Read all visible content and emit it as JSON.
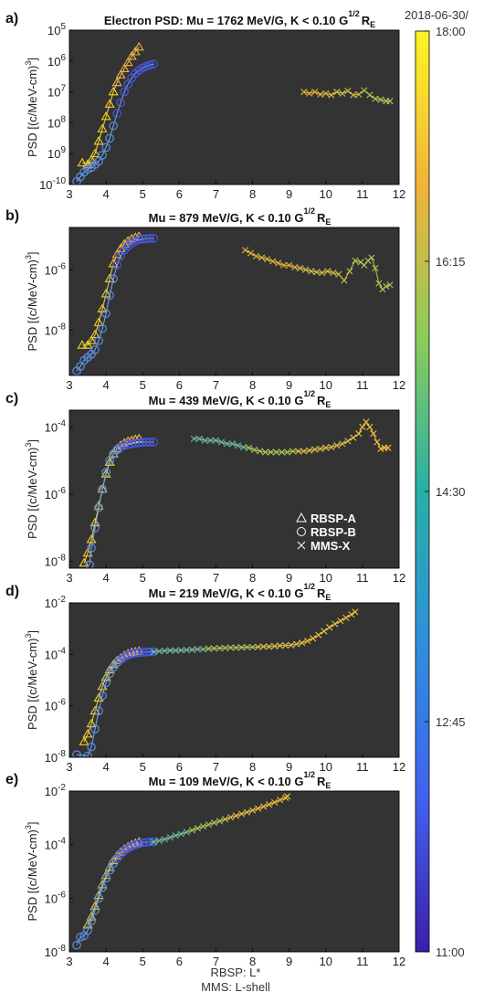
{
  "figure": {
    "xlabel_line1": "RBSP: L*",
    "xlabel_line2": "MMS: L-shell",
    "colorbar": {
      "date_label": "2018-06-30/",
      "ticks": [
        "18:00",
        "16:15",
        "14:30",
        "12:45",
        "11:00"
      ],
      "colors": [
        "#fcf524",
        "#f2b33a",
        "#8ccb5a",
        "#27b0a6",
        "#2f8fdd",
        "#4162f0",
        "#3a1fa8"
      ]
    },
    "legend": [
      "RBSP-A",
      "RBSP-B",
      "MMS-X"
    ],
    "marker_colors": {
      "rbsp_a": "#f5d020",
      "rbsp_b": "#5f7ff5",
      "line": "#6fa3e8"
    },
    "plot_background": "#333333"
  },
  "chart_data": [
    {
      "panel": "a)",
      "type": "scatter",
      "title_main": "Electron PSD: Mu = 1762 MeV/G, K < 0.10 G",
      "title_sup": "1/2",
      "title_re": "R",
      "title_sub": "E",
      "ylabel": "PSD [(c/MeV-cm)",
      "ylabel_sup": "3",
      "ylabel_end": "]",
      "xlim": [
        3,
        12
      ],
      "ylim_log": [
        -10,
        -5
      ],
      "x_ticks": [
        "3",
        "4",
        "5",
        "6",
        "7",
        "8",
        "9",
        "10",
        "11",
        "12"
      ],
      "y_ticks": [
        {
          "v": -10,
          "base": "10",
          "exp": "-10"
        },
        {
          "v": -9,
          "base": "10",
          "exp": "9"
        },
        {
          "v": -8,
          "base": "10",
          "exp": "8"
        },
        {
          "v": -7,
          "base": "10",
          "exp": "7"
        },
        {
          "v": -6,
          "base": "10",
          "exp": "6"
        },
        {
          "v": -5,
          "base": "10",
          "exp": "5"
        }
      ],
      "series": [
        {
          "name": "RBSP-A",
          "x": [
            3.35,
            3.5,
            3.6,
            3.7,
            3.8,
            3.9,
            4.0,
            4.1,
            4.2,
            4.3,
            4.4,
            4.5,
            4.6,
            4.7,
            4.8,
            4.9
          ],
          "log_y": [
            -9.3,
            -9.35,
            -9.2,
            -9.0,
            -8.6,
            -8.2,
            -7.8,
            -7.4,
            -7.0,
            -6.7,
            -6.45,
            -6.25,
            -6.05,
            -5.85,
            -5.7,
            -5.55
          ]
        },
        {
          "name": "RBSP-B",
          "x": [
            3.2,
            3.3,
            3.4,
            3.5,
            3.6,
            3.7,
            3.8,
            3.9,
            4.0,
            4.1,
            4.2,
            4.3,
            4.4,
            4.5,
            4.6,
            4.7,
            4.8,
            4.9,
            5.0,
            5.1,
            5.2,
            5.3
          ],
          "log_y": [
            -9.9,
            -9.75,
            -9.6,
            -9.5,
            -9.45,
            -9.35,
            -9.25,
            -9.05,
            -8.8,
            -8.5,
            -8.1,
            -7.7,
            -7.35,
            -7.0,
            -6.75,
            -6.55,
            -6.4,
            -6.3,
            -6.22,
            -6.17,
            -6.13,
            -6.1
          ]
        },
        {
          "name": "MMS-X",
          "x": [
            9.4,
            9.55,
            9.7,
            9.85,
            10.0,
            10.15,
            10.3,
            10.45,
            10.6,
            10.75,
            10.9,
            11.05,
            11.2,
            11.35,
            11.5,
            11.65,
            11.75
          ],
          "log_y": [
            -7.0,
            -7.05,
            -7.0,
            -7.08,
            -7.05,
            -7.1,
            -7.0,
            -7.05,
            -6.97,
            -7.1,
            -7.08,
            -6.95,
            -7.1,
            -7.22,
            -7.25,
            -7.3,
            -7.3
          ]
        }
      ]
    },
    {
      "panel": "b)",
      "type": "scatter",
      "title_main": "Mu = 879 MeV/G, K < 0.10 G",
      "title_sup": "1/2",
      "title_re": "R",
      "title_sub": "E",
      "ylabel": "PSD [(c/MeV-cm)",
      "ylabel_sup": "3",
      "ylabel_end": "]",
      "xlim": [
        3,
        12
      ],
      "ylim_log": [
        -9.5,
        -4.6
      ],
      "x_ticks": [
        "3",
        "4",
        "5",
        "6",
        "7",
        "8",
        "9",
        "10",
        "11",
        "12"
      ],
      "y_ticks": [
        {
          "v": -8,
          "base": "10",
          "exp": "-8"
        },
        {
          "v": -6,
          "base": "10",
          "exp": "-6"
        }
      ],
      "series": [
        {
          "name": "RBSP-A",
          "x": [
            3.35,
            3.5,
            3.6,
            3.7,
            3.8,
            3.9,
            4.0,
            4.1,
            4.2,
            4.3,
            4.4,
            4.5,
            4.6,
            4.7,
            4.8,
            4.9
          ],
          "log_y": [
            -8.5,
            -8.5,
            -8.35,
            -8.15,
            -7.75,
            -7.3,
            -6.8,
            -6.3,
            -5.8,
            -5.5,
            -5.3,
            -5.15,
            -5.05,
            -4.98,
            -4.93,
            -4.9
          ]
        },
        {
          "name": "RBSP-B",
          "x": [
            3.2,
            3.3,
            3.4,
            3.5,
            3.6,
            3.7,
            3.8,
            3.9,
            4.0,
            4.1,
            4.2,
            4.3,
            4.4,
            4.5,
            4.6,
            4.7,
            4.8,
            4.9,
            5.0,
            5.1,
            5.2,
            5.3
          ],
          "log_y": [
            -9.35,
            -9.2,
            -9.0,
            -8.9,
            -8.8,
            -8.65,
            -8.35,
            -7.95,
            -7.45,
            -6.85,
            -6.3,
            -5.85,
            -5.55,
            -5.35,
            -5.22,
            -5.12,
            -5.05,
            -5.0,
            -4.98,
            -4.97,
            -4.96,
            -4.96
          ]
        },
        {
          "name": "MMS-X",
          "x": [
            7.8,
            7.95,
            8.1,
            8.25,
            8.4,
            8.55,
            8.7,
            8.85,
            9.0,
            9.15,
            9.3,
            9.45,
            9.6,
            9.75,
            9.9,
            10.05,
            10.2,
            10.35,
            10.5,
            10.65,
            10.8,
            10.95,
            11.05,
            11.15,
            11.25,
            11.35,
            11.45,
            11.55,
            11.65,
            11.75
          ],
          "log_y": [
            -5.35,
            -5.45,
            -5.55,
            -5.6,
            -5.65,
            -5.72,
            -5.78,
            -5.85,
            -5.85,
            -5.92,
            -5.95,
            -6.0,
            -6.05,
            -6.08,
            -6.1,
            -6.05,
            -6.1,
            -6.15,
            -6.35,
            -6.05,
            -5.7,
            -5.75,
            -5.85,
            -5.7,
            -5.6,
            -5.95,
            -6.45,
            -6.65,
            -6.55,
            -6.5
          ]
        }
      ]
    },
    {
      "panel": "c)",
      "type": "scatter",
      "title_main": "Mu = 439 MeV/G, K < 0.10 G",
      "title_sup": "1/2",
      "title_re": "R",
      "title_sub": "E",
      "ylabel": "PSD [(c/MeV-cm)",
      "ylabel_sup": "3",
      "ylabel_end": "]",
      "xlim": [
        3,
        12
      ],
      "ylim_log": [
        -8.2,
        -3.5
      ],
      "x_ticks": [
        "3",
        "4",
        "5",
        "6",
        "7",
        "8",
        "9",
        "10",
        "11",
        "12"
      ],
      "y_ticks": [
        {
          "v": -8,
          "base": "10",
          "exp": "-8"
        },
        {
          "v": -6,
          "base": "10",
          "exp": "-6"
        },
        {
          "v": -4,
          "base": "10",
          "exp": "-4"
        }
      ],
      "series": [
        {
          "name": "RBSP-A",
          "x": [
            3.4,
            3.5,
            3.6,
            3.7,
            3.8,
            3.9,
            4.0,
            4.1,
            4.2,
            4.3,
            4.4,
            4.5,
            4.6,
            4.7,
            4.8,
            4.9
          ],
          "log_y": [
            -8.05,
            -7.75,
            -7.35,
            -6.85,
            -6.35,
            -5.85,
            -5.4,
            -5.05,
            -4.8,
            -4.65,
            -4.55,
            -4.48,
            -4.43,
            -4.4,
            -4.37,
            -4.35
          ]
        },
        {
          "name": "RBSP-B",
          "x": [
            3.55,
            3.6,
            3.7,
            3.8,
            3.9,
            4.0,
            4.1,
            4.2,
            4.3,
            4.4,
            4.5,
            4.6,
            4.7,
            4.8,
            4.9,
            5.0,
            5.1,
            5.2,
            5.3
          ],
          "log_y": [
            -8.1,
            -7.6,
            -7.0,
            -6.4,
            -5.85,
            -5.35,
            -5.0,
            -4.8,
            -4.68,
            -4.6,
            -4.55,
            -4.52,
            -4.5,
            -4.48,
            -4.47,
            -4.46,
            -4.45,
            -4.45,
            -4.45
          ]
        },
        {
          "name": "MMS-X",
          "x": [
            6.4,
            6.55,
            6.7,
            6.85,
            7.0,
            7.15,
            7.3,
            7.45,
            7.6,
            7.75,
            7.9,
            8.05,
            8.2,
            8.35,
            8.5,
            8.65,
            8.8,
            8.95,
            9.1,
            9.25,
            9.4,
            9.55,
            9.7,
            9.85,
            10.0,
            10.15,
            10.3,
            10.45,
            10.6,
            10.75,
            10.9,
            11.0,
            11.1,
            11.2,
            11.3,
            11.4,
            11.5,
            11.6,
            11.7
          ],
          "log_y": [
            -4.35,
            -4.35,
            -4.4,
            -4.4,
            -4.4,
            -4.45,
            -4.5,
            -4.5,
            -4.55,
            -4.6,
            -4.62,
            -4.68,
            -4.72,
            -4.75,
            -4.75,
            -4.75,
            -4.75,
            -4.75,
            -4.72,
            -4.72,
            -4.72,
            -4.7,
            -4.67,
            -4.65,
            -4.62,
            -4.6,
            -4.55,
            -4.5,
            -4.42,
            -4.32,
            -4.2,
            -4.0,
            -3.85,
            -4.0,
            -4.2,
            -4.45,
            -4.65,
            -4.62,
            -4.62
          ]
        }
      ]
    },
    {
      "panel": "d)",
      "type": "scatter",
      "title_main": "Mu = 219 MeV/G, K < 0.10 G",
      "title_sup": "1/2",
      "title_re": "R",
      "title_sub": "E",
      "ylabel": "PSD [(c/MeV-cm)",
      "ylabel_sup": "3",
      "ylabel_end": "]",
      "xlim": [
        3,
        12
      ],
      "ylim_log": [
        -8,
        -2
      ],
      "x_ticks": [
        "3",
        "4",
        "5",
        "6",
        "7",
        "8",
        "9",
        "10",
        "11",
        "12"
      ],
      "y_ticks": [
        {
          "v": -8,
          "base": "10",
          "exp": "-8"
        },
        {
          "v": -6,
          "base": "10",
          "exp": "-6"
        },
        {
          "v": -4,
          "base": "10",
          "exp": "-4"
        },
        {
          "v": -2,
          "base": "10",
          "exp": "-2"
        }
      ],
      "series": [
        {
          "name": "RBSP-A",
          "x": [
            3.4,
            3.5,
            3.6,
            3.7,
            3.8,
            3.9,
            4.0,
            4.1,
            4.2,
            4.3,
            4.4,
            4.5,
            4.6,
            4.7,
            4.8,
            4.9
          ],
          "log_y": [
            -7.4,
            -7.1,
            -6.7,
            -6.2,
            -5.7,
            -5.25,
            -4.9,
            -4.6,
            -4.4,
            -4.25,
            -4.15,
            -4.05,
            -3.98,
            -3.93,
            -3.9,
            -3.88
          ]
        },
        {
          "name": "RBSP-B",
          "x": [
            3.2,
            3.5,
            3.6,
            3.7,
            3.8,
            3.9,
            4.0,
            4.1,
            4.2,
            4.3,
            4.4,
            4.5,
            4.6,
            4.7,
            4.8,
            4.9,
            5.0,
            5.1,
            5.2,
            5.3
          ],
          "log_y": [
            -7.9,
            -7.95,
            -7.6,
            -6.9,
            -6.2,
            -5.6,
            -5.1,
            -4.75,
            -4.5,
            -4.32,
            -4.2,
            -4.1,
            -4.03,
            -3.98,
            -3.95,
            -3.93,
            -3.92,
            -3.91,
            -3.9,
            -3.9
          ]
        },
        {
          "name": "MMS-X",
          "x": [
            5.3,
            5.45,
            5.6,
            5.75,
            5.9,
            6.05,
            6.2,
            6.35,
            6.5,
            6.65,
            6.8,
            6.95,
            7.1,
            7.25,
            7.4,
            7.55,
            7.7,
            7.85,
            8.0,
            8.15,
            8.3,
            8.45,
            8.6,
            8.75,
            8.9,
            9.05,
            9.2,
            9.35,
            9.5,
            9.65,
            9.8,
            9.95,
            10.1,
            10.25,
            10.4,
            10.55,
            10.7,
            10.8
          ],
          "log_y": [
            -3.9,
            -3.88,
            -3.86,
            -3.85,
            -3.85,
            -3.84,
            -3.83,
            -3.82,
            -3.8,
            -3.8,
            -3.78,
            -3.77,
            -3.76,
            -3.75,
            -3.74,
            -3.74,
            -3.73,
            -3.72,
            -3.72,
            -3.71,
            -3.7,
            -3.7,
            -3.68,
            -3.66,
            -3.65,
            -3.64,
            -3.6,
            -3.55,
            -3.48,
            -3.38,
            -3.25,
            -3.1,
            -2.95,
            -2.82,
            -2.7,
            -2.58,
            -2.45,
            -2.35
          ]
        }
      ]
    },
    {
      "panel": "e)",
      "type": "scatter",
      "title_main": "Mu = 109 MeV/G, K < 0.10 G",
      "title_sup": "1/2",
      "title_re": "R",
      "title_sub": "E",
      "ylabel": "PSD [(c/MeV-cm)",
      "ylabel_sup": "3",
      "ylabel_end": "]",
      "xlim": [
        3,
        12
      ],
      "ylim_log": [
        -8,
        -2
      ],
      "x_ticks": [
        "3",
        "4",
        "5",
        "6",
        "7",
        "8",
        "9",
        "10",
        "11",
        "12"
      ],
      "y_ticks": [
        {
          "v": -8,
          "base": "10",
          "exp": "-8"
        },
        {
          "v": -6,
          "base": "10",
          "exp": "-6"
        },
        {
          "v": -4,
          "base": "10",
          "exp": "-4"
        },
        {
          "v": -2,
          "base": "10",
          "exp": "-2"
        }
      ],
      "series": [
        {
          "name": "RBSP-A",
          "x": [
            3.5,
            3.6,
            3.7,
            3.8,
            3.9,
            4.0,
            4.1,
            4.2,
            4.3,
            4.4,
            4.5,
            4.6,
            4.7,
            4.8,
            4.9
          ],
          "log_y": [
            -7.0,
            -6.7,
            -6.3,
            -5.9,
            -5.5,
            -5.15,
            -4.85,
            -4.6,
            -4.42,
            -4.28,
            -4.17,
            -4.08,
            -4.0,
            -3.95,
            -3.9
          ]
        },
        {
          "name": "RBSP-B",
          "x": [
            3.2,
            3.3,
            3.4,
            3.5,
            3.6,
            3.7,
            3.8,
            3.9,
            4.0,
            4.1,
            4.2,
            4.3,
            4.4,
            4.5,
            4.6,
            4.7,
            4.8,
            4.9,
            5.0,
            5.1,
            5.2,
            5.3
          ],
          "log_y": [
            -7.75,
            -7.45,
            -7.4,
            -7.2,
            -6.85,
            -6.45,
            -6.0,
            -5.6,
            -5.25,
            -4.95,
            -4.7,
            -4.5,
            -4.35,
            -4.23,
            -4.13,
            -4.06,
            -4.0,
            -3.96,
            -3.93,
            -3.91,
            -3.9,
            -3.9
          ]
        },
        {
          "name": "MMS-X",
          "x": [
            5.3,
            5.45,
            5.6,
            5.75,
            5.9,
            6.05,
            6.2,
            6.35,
            6.5,
            6.65,
            6.8,
            6.95,
            7.1,
            7.25,
            7.4,
            7.55,
            7.7,
            7.85,
            8.0,
            8.15,
            8.3,
            8.45,
            8.6,
            8.75,
            8.9,
            8.95
          ],
          "log_y": [
            -3.9,
            -3.85,
            -3.8,
            -3.73,
            -3.66,
            -3.6,
            -3.53,
            -3.46,
            -3.39,
            -3.32,
            -3.25,
            -3.18,
            -3.12,
            -3.05,
            -2.98,
            -2.92,
            -2.85,
            -2.79,
            -2.72,
            -2.65,
            -2.58,
            -2.5,
            -2.42,
            -2.33,
            -2.25,
            -2.2
          ]
        }
      ]
    }
  ]
}
